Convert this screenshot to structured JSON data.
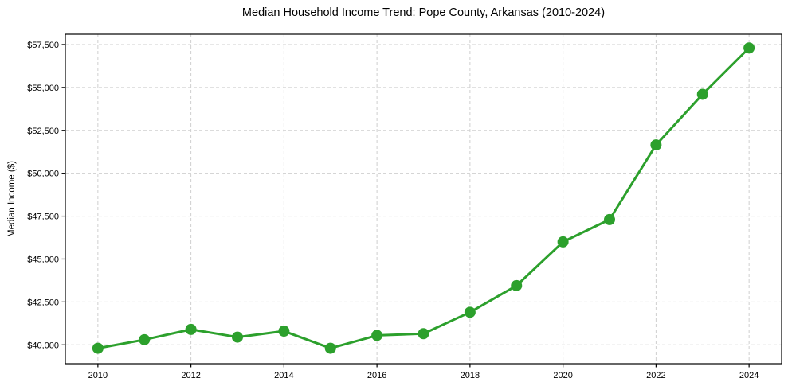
{
  "title": "Median Household Income Trend: Pope County, Arkansas (2010-2024)",
  "chart_data": {
    "type": "line",
    "title": "Median Household Income Trend: Pope County, Arkansas (2010-2024)",
    "xlabel": "",
    "ylabel": "Median Income ($)",
    "x": [
      2010,
      2011,
      2012,
      2013,
      2014,
      2015,
      2016,
      2017,
      2018,
      2019,
      2020,
      2021,
      2022,
      2023,
      2024
    ],
    "series": [
      {
        "name": "Median Household Income",
        "values": [
          39800,
          40300,
          40900,
          40450,
          40800,
          39800,
          40550,
          40650,
          41900,
          43450,
          46000,
          47300,
          51650,
          54600,
          57300
        ],
        "color": "#2ca02c"
      }
    ],
    "xticks": [
      2010,
      2012,
      2014,
      2016,
      2018,
      2020,
      2022,
      2024
    ],
    "xtick_labels": [
      "2010",
      "2012",
      "2014",
      "2016",
      "2018",
      "2020",
      "2022",
      "2024"
    ],
    "yticks": [
      40000,
      42500,
      45000,
      47500,
      50000,
      52500,
      55000,
      57500
    ],
    "ytick_labels": [
      "$40,000",
      "$42,500",
      "$45,000",
      "$47,500",
      "$50,000",
      "$52,500",
      "$55,000",
      "$57,500"
    ],
    "xlim": [
      2009.3,
      2024.7
    ],
    "ylim": [
      38900,
      58100
    ],
    "grid": true,
    "grid_style": "dashed",
    "grid_color": "#cfcfcf",
    "border_color": "#000000",
    "background_color": "#ffffff",
    "legend": false,
    "marker": "circle",
    "marker_radius": 7,
    "line_width": 3
  }
}
